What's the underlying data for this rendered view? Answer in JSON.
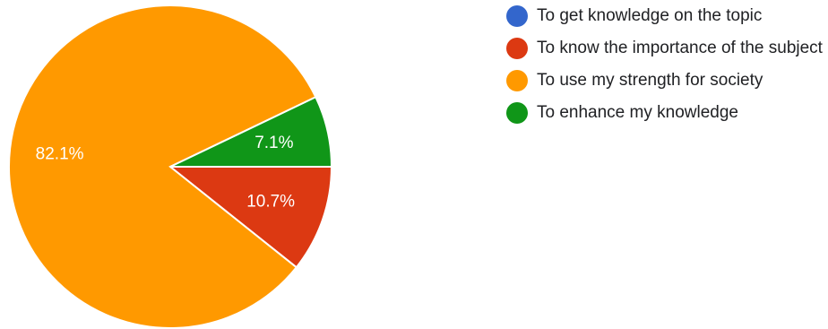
{
  "chart_data": {
    "type": "pie",
    "title": "",
    "categories": [
      "To get knowledge on the topic",
      "To know the importance of the subject",
      "To use my strength for society",
      "To enhance my knowledge"
    ],
    "values": [
      0,
      10.7,
      82.1,
      7.1
    ],
    "value_labels": [
      "",
      "10.7%",
      "82.1%",
      "7.1%"
    ],
    "colors": [
      "#3366cc",
      "#dc3912",
      "#ff9900",
      "#109618"
    ],
    "legend_position": "right"
  }
}
